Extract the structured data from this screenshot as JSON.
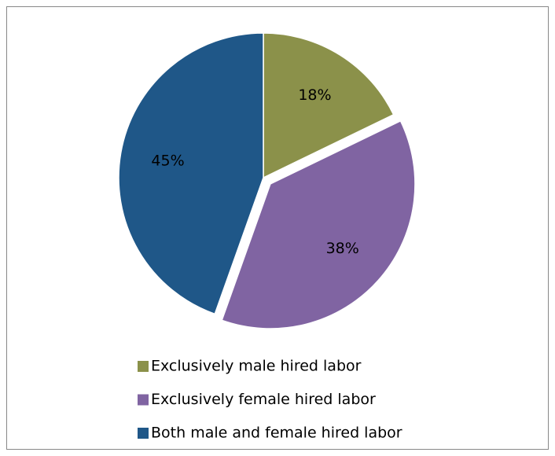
{
  "chart_data": {
    "type": "pie",
    "categories": [
      "Exclusively male hired labor",
      "Exclusively female hired labor",
      "Both male and female hired labor"
    ],
    "values": [
      18,
      38,
      45
    ],
    "value_labels": [
      "18%",
      "38%",
      "45%"
    ],
    "colors": [
      "#8b914a",
      "#8064a2",
      "#1f5788"
    ],
    "explode": [
      false,
      true,
      false
    ],
    "legend": "bottom"
  }
}
